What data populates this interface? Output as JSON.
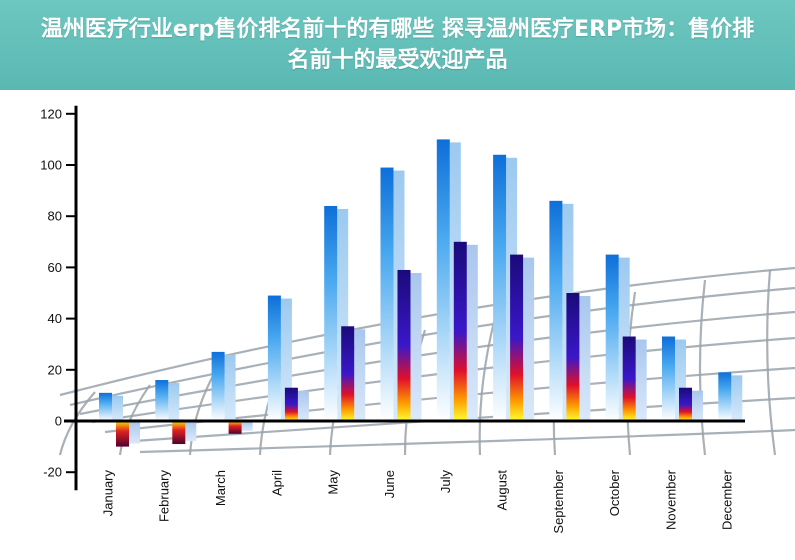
{
  "title": "温州医疗行业erp售价排名前十的有哪些 探寻温州医疗ERP市场：售价排名前十的最受欢迎产品",
  "chart_data": {
    "type": "bar",
    "categories": [
      "January",
      "February",
      "March",
      "April",
      "May",
      "June",
      "July",
      "August",
      "September",
      "October",
      "November",
      "December"
    ],
    "series": [
      {
        "style": "blue-gradient",
        "values": [
          11,
          16,
          27,
          49,
          84,
          99,
          110,
          104,
          86,
          65,
          33,
          19
        ]
      },
      {
        "style": "fire-gradient",
        "values": [
          -10,
          -9,
          -5,
          13,
          37,
          59,
          70,
          65,
          50,
          33,
          13,
          null
        ]
      }
    ],
    "ylim": [
      -20,
      120
    ],
    "yticks": [
      -20,
      0,
      20,
      40,
      60,
      80,
      100,
      120
    ],
    "grid": false,
    "legend": "none"
  }
}
